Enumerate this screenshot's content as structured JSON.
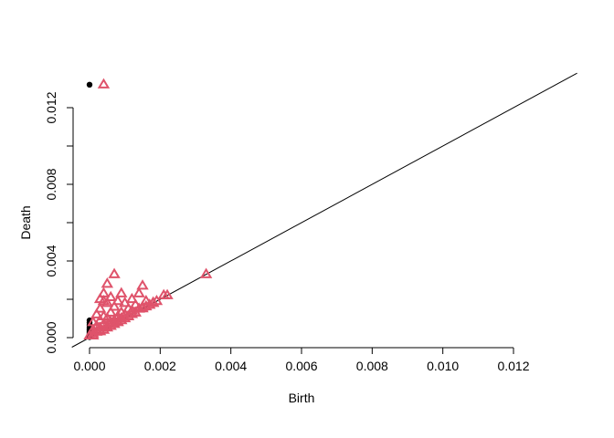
{
  "chart_data": {
    "type": "scatter",
    "title": "",
    "xlabel": "Birth",
    "ylabel": "Death",
    "xlim": [
      0.0,
      0.012
    ],
    "ylim": [
      0.0,
      0.012
    ],
    "x_ticks": [
      "0.000",
      "0.002",
      "0.004",
      "0.006",
      "0.008",
      "0.010",
      "0.012"
    ],
    "y_ticks": [
      "0.000",
      "0.004",
      "0.008",
      "0.012"
    ],
    "diagonal": true,
    "grid": false,
    "series": [
      {
        "marker": "dot",
        "color": "#000000",
        "points": [
          [
            0.0,
            0.0132
          ],
          [
            0.0,
            0.0009
          ],
          [
            0.0,
            0.00078
          ],
          [
            0.0,
            0.00066
          ],
          [
            0.0,
            0.00056
          ],
          [
            0.0,
            0.00047
          ],
          [
            0.0,
            0.0004
          ],
          [
            0.0,
            0.00034
          ],
          [
            0.0,
            0.00028
          ],
          [
            0.0,
            0.00022
          ],
          [
            0.0,
            0.00017
          ],
          [
            0.0,
            0.00012
          ],
          [
            0.0,
            7e-05
          ],
          [
            0.0,
            3e-05
          ]
        ]
      },
      {
        "marker": "triangle",
        "color": "#DF536B",
        "points": [
          [
            0.0004,
            0.0132
          ],
          [
            0.0033,
            0.0033
          ],
          [
            0.0007,
            0.0033
          ],
          [
            0.0005,
            0.0028
          ],
          [
            0.0015,
            0.0027
          ],
          [
            0.0004,
            0.0023
          ],
          [
            0.0009,
            0.0023
          ],
          [
            0.0014,
            0.0023
          ],
          [
            0.0021,
            0.0022
          ],
          [
            0.0022,
            0.0022
          ],
          [
            0.0003,
            0.002
          ],
          [
            0.0006,
            0.0021
          ],
          [
            0.0012,
            0.002
          ],
          [
            0.0016,
            0.0019
          ],
          [
            0.0018,
            0.0018
          ],
          [
            0.0004,
            0.0019
          ],
          [
            0.0005,
            0.0018
          ],
          [
            0.0008,
            0.0019
          ],
          [
            0.001,
            0.0018
          ],
          [
            0.0013,
            0.0017
          ],
          [
            0.0015,
            0.0016
          ],
          [
            0.0003,
            0.0015
          ],
          [
            0.0007,
            0.0016
          ],
          [
            0.0011,
            0.0015
          ],
          [
            0.0014,
            0.0015
          ],
          [
            0.0017,
            0.0017
          ],
          [
            0.0002,
            0.0012
          ],
          [
            0.0006,
            0.0013
          ],
          [
            0.0009,
            0.0013
          ],
          [
            0.0012,
            0.0014
          ],
          [
            0.0004,
            0.0011
          ],
          [
            0.0008,
            0.0011
          ],
          [
            0.001,
            0.0012
          ],
          [
            0.0013,
            0.0013
          ],
          [
            0.0001,
            0.0008
          ],
          [
            0.0003,
            0.0009
          ],
          [
            0.0005,
            0.001
          ],
          [
            0.0007,
            0.0009
          ],
          [
            0.0009,
            0.001
          ],
          [
            0.0011,
            0.0011
          ],
          [
            0.0002,
            0.0006
          ],
          [
            0.0004,
            0.0007
          ],
          [
            0.0006,
            0.0008
          ],
          [
            0.0008,
            0.0008
          ],
          [
            0.001,
            0.001
          ],
          [
            0.0001,
            0.0004
          ],
          [
            0.0003,
            0.0005
          ],
          [
            0.0005,
            0.0006
          ],
          [
            0.0007,
            0.0007
          ],
          [
            0.0009,
            0.0009
          ],
          [
            0.0001,
            0.0002
          ],
          [
            0.0002,
            0.0003
          ],
          [
            0.0004,
            0.0004
          ],
          [
            0.0006,
            0.0006
          ],
          [
            0.0008,
            0.00082
          ],
          [
            0.0,
            0.0001
          ],
          [
            0.0001,
            0.0001
          ],
          [
            0.0003,
            0.00032
          ],
          [
            0.0005,
            0.00052
          ],
          [
            0.0015,
            0.00152
          ],
          [
            0.0016,
            0.00162
          ],
          [
            0.0018,
            0.00182
          ],
          [
            0.0019,
            0.0019
          ],
          [
            0.0012,
            0.00122
          ]
        ]
      }
    ]
  }
}
